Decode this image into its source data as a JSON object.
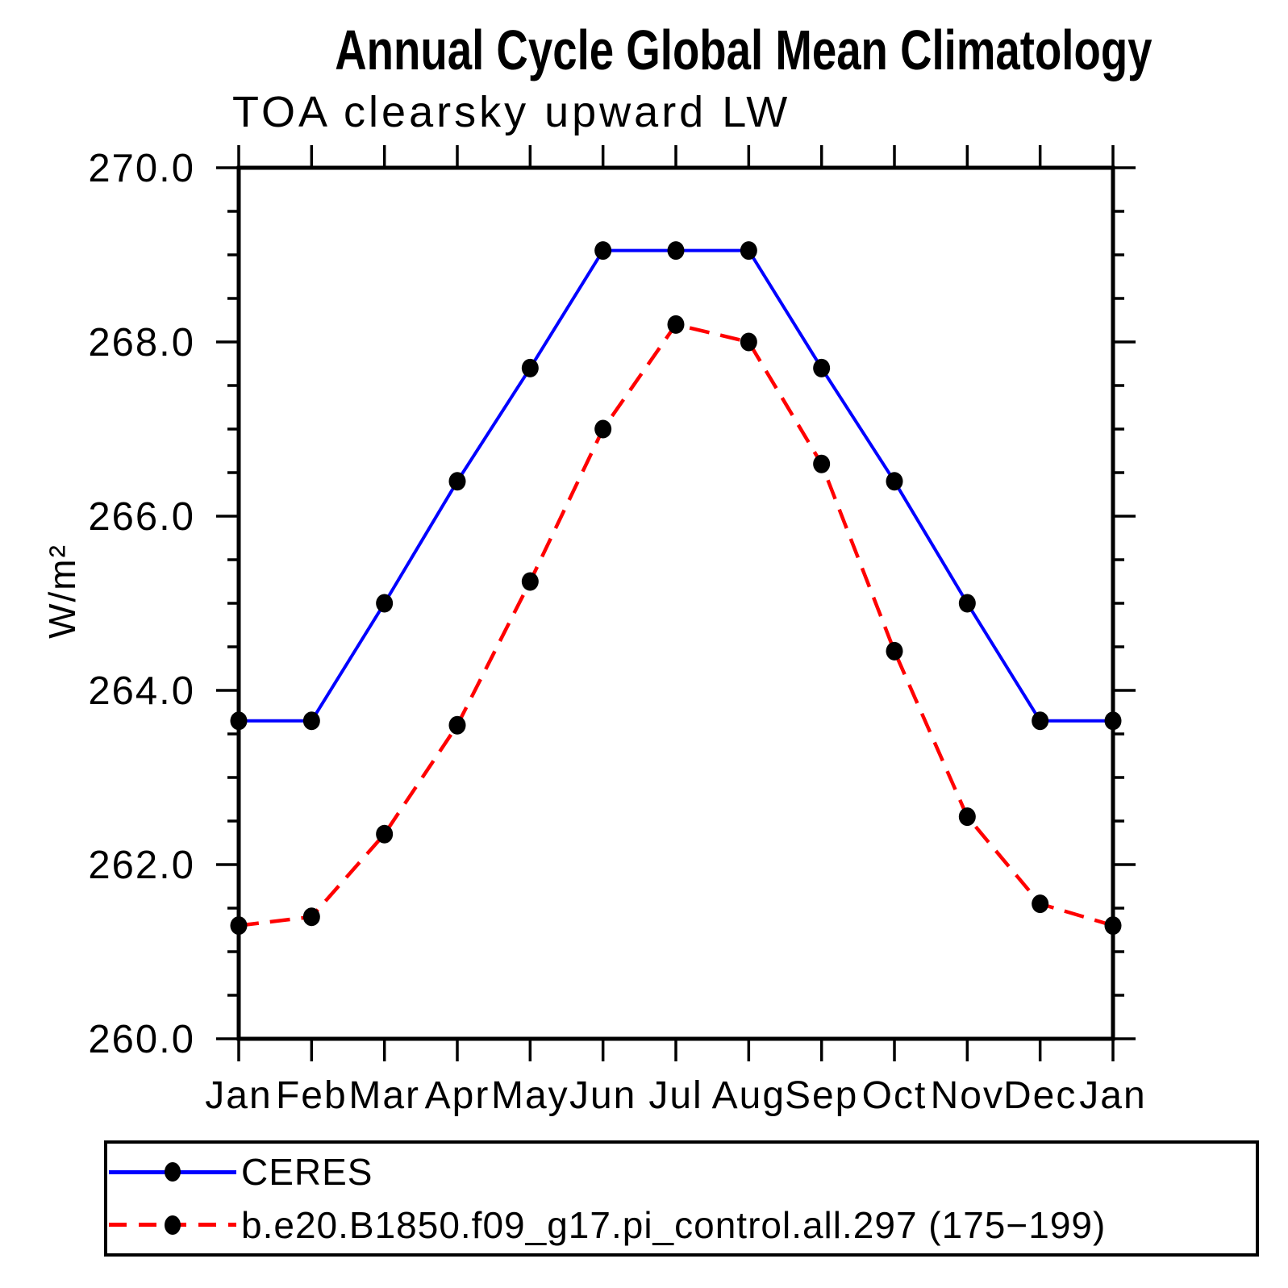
{
  "header": {
    "title": "Annual Cycle Global Mean Climatology",
    "subtitle": "TOA clearsky upward LW"
  },
  "y_axis": {
    "label": "W/m²",
    "tick_labels": [
      "270.0",
      "268.0",
      "266.0",
      "264.0",
      "262.0",
      "260.0"
    ]
  },
  "x_axis": {
    "tick_labels": [
      "Jan",
      "Feb",
      "Mar",
      "Apr",
      "May",
      "Jun",
      "Jul",
      "Aug",
      "Sep",
      "Oct",
      "Nov",
      "Dec",
      "Jan"
    ]
  },
  "chart_data": {
    "type": "line",
    "title": "Annual Cycle Global Mean Climatology",
    "subtitle": "TOA clearsky upward LW",
    "ylabel": "W/m²",
    "ylim": [
      260.0,
      270.0
    ],
    "y_major_step": 2.0,
    "y_minor_step": 0.5,
    "grid": false,
    "legend_position": "bottom-left-box",
    "categories": [
      "Jan",
      "Feb",
      "Mar",
      "Apr",
      "May",
      "Jun",
      "Jul",
      "Aug",
      "Sep",
      "Oct",
      "Nov",
      "Dec",
      "Jan"
    ],
    "series": [
      {
        "name": "CERES",
        "color": "#0000ff",
        "line_style": "solid",
        "marker": "filled-circle",
        "marker_color": "#000000",
        "values": [
          263.65,
          263.65,
          265.0,
          266.4,
          267.7,
          269.05,
          269.05,
          269.05,
          267.7,
          266.4,
          265.0,
          263.65,
          263.65
        ]
      },
      {
        "name": "b.e20.B1850.f09_g17.pi_control.all.297 (175−199)",
        "color": "#ff0000",
        "line_style": "dashed",
        "marker": "filled-circle",
        "marker_color": "#000000",
        "values": [
          261.3,
          261.4,
          262.35,
          263.6,
          265.25,
          267.0,
          268.2,
          268.0,
          266.6,
          264.45,
          262.55,
          261.55,
          261.3
        ]
      }
    ]
  }
}
